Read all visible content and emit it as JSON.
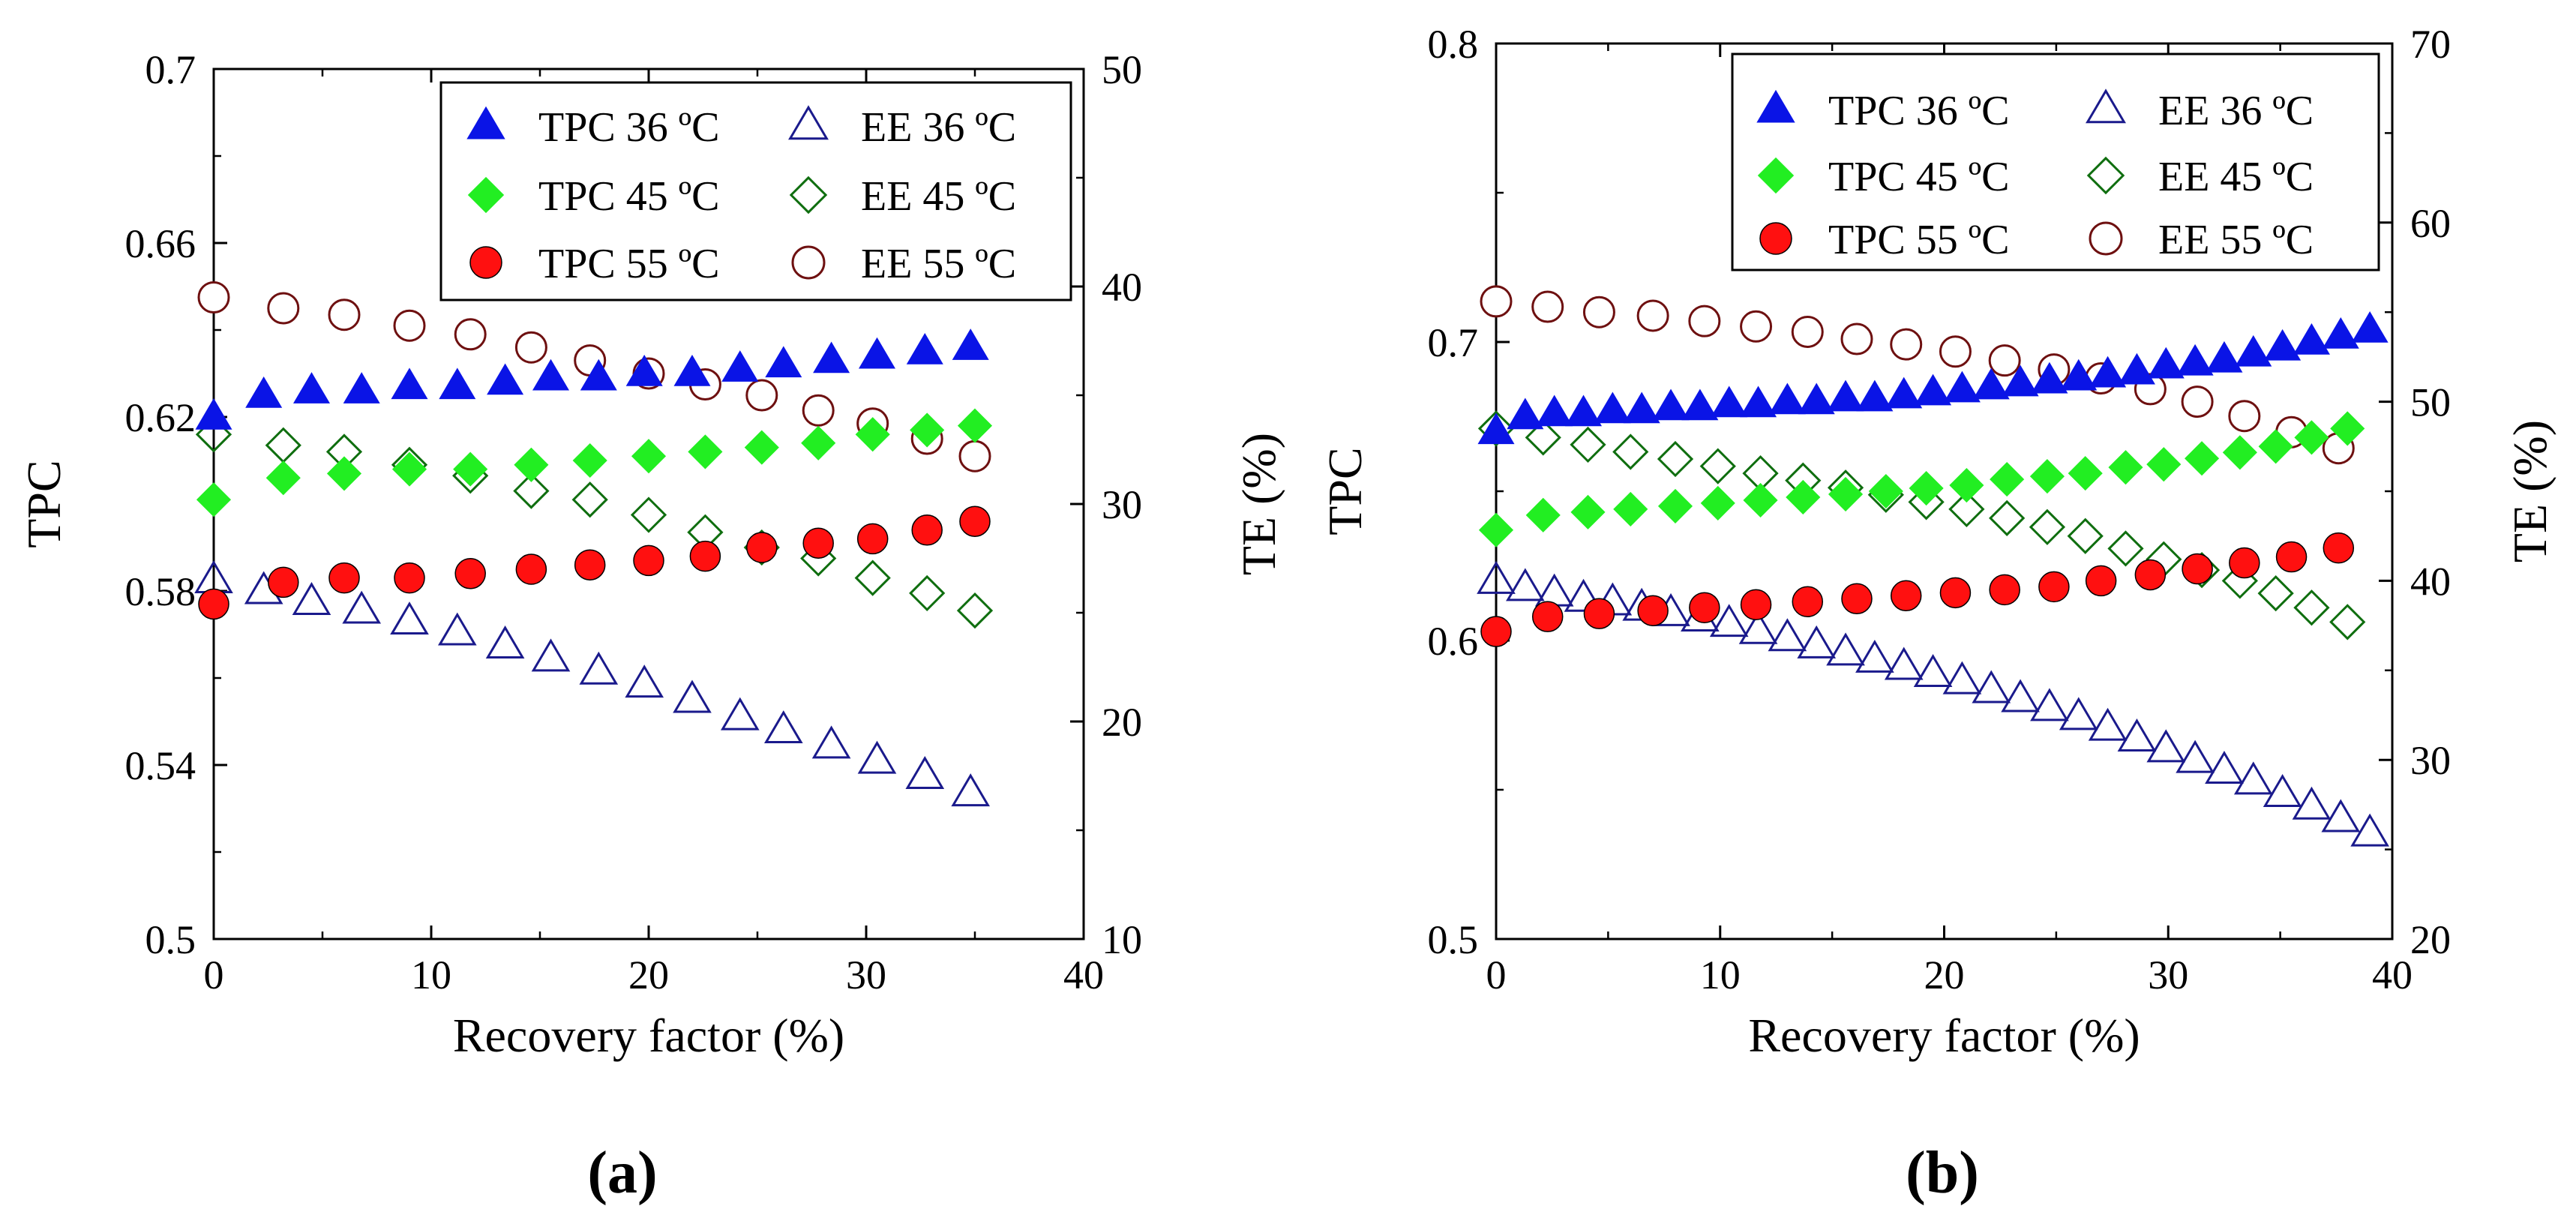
{
  "colors": {
    "tpc36": "#0a14e6",
    "tpc45": "#22ee22",
    "tpc55": "#ff1010",
    "ee36": "#1a1a8c",
    "ee45": "#0f6e0f",
    "ee55": "#6e1010",
    "axis": "#000000"
  },
  "chart_data": [
    {
      "type": "scatter",
      "panel_label": "(a)",
      "xlabel": "Recovery factor (%)",
      "ylabel": "TPC",
      "y2label": "TE (%)",
      "xlim": [
        0,
        40
      ],
      "ylim": [
        0.5,
        0.7
      ],
      "y2lim": [
        10,
        50
      ],
      "xticks": [
        "0",
        "10",
        "20",
        "30",
        "40"
      ],
      "yticks": [
        "0.5",
        "0.54",
        "0.58",
        "0.62",
        "0.66",
        "0.7"
      ],
      "y2ticks": [
        "10",
        "20",
        "30",
        "40",
        "50"
      ],
      "legend_position": "top-right",
      "legend_labels": [
        "TPC 36 ºC",
        "EE 36 ºC",
        "TPC 45 ºC",
        "EE 45 ºC",
        "TPC 55 ºC",
        "EE 55 ºC"
      ],
      "series": [
        {
          "key": "tpc36",
          "name": "TPC 36 ºC",
          "axis": "left",
          "marker": "triangle",
          "filled": true,
          "x": [
            0,
            2.3,
            4.5,
            6.8,
            9,
            11.2,
            13.4,
            15.5,
            17.7,
            19.8,
            22,
            24.2,
            26.2,
            28.4,
            30.5,
            32.7,
            34.8
          ],
          "y": [
            0.62,
            0.625,
            0.626,
            0.626,
            0.627,
            0.627,
            0.628,
            0.629,
            0.629,
            0.63,
            0.63,
            0.631,
            0.632,
            0.633,
            0.634,
            0.635,
            0.636
          ]
        },
        {
          "key": "tpc45",
          "name": "TPC 45 ºC",
          "axis": "left",
          "marker": "diamond",
          "filled": true,
          "x": [
            0,
            3.2,
            6,
            9,
            11.8,
            14.6,
            17.3,
            20,
            22.6,
            25.2,
            27.8,
            30.3,
            32.8,
            35
          ],
          "y": [
            0.601,
            0.606,
            0.607,
            0.608,
            0.608,
            0.609,
            0.61,
            0.611,
            0.612,
            0.613,
            0.614,
            0.616,
            0.617,
            0.618
          ]
        },
        {
          "key": "tpc55",
          "name": "TPC 55 ºC",
          "axis": "left",
          "marker": "circle",
          "filled": true,
          "x": [
            0,
            3.2,
            6,
            9,
            11.8,
            14.6,
            17.3,
            20,
            22.6,
            25.2,
            27.8,
            30.3,
            32.8,
            35
          ],
          "y": [
            0.577,
            0.582,
            0.583,
            0.583,
            0.584,
            0.585,
            0.586,
            0.587,
            0.588,
            0.59,
            0.591,
            0.592,
            0.594,
            0.596
          ]
        },
        {
          "key": "ee36",
          "name": "EE 36 ºC",
          "axis": "right",
          "marker": "triangle",
          "filled": false,
          "x": [
            0,
            2.3,
            4.5,
            6.8,
            9,
            11.2,
            13.4,
            15.5,
            17.7,
            19.8,
            22,
            24.2,
            26.2,
            28.4,
            30.5,
            32.7,
            34.8
          ],
          "y": [
            26.5,
            26.0,
            25.5,
            25.1,
            24.6,
            24.1,
            23.5,
            22.9,
            22.3,
            21.7,
            21.0,
            20.2,
            19.6,
            18.9,
            18.2,
            17.5,
            16.7
          ]
        },
        {
          "key": "ee45",
          "name": "EE 45 ºC",
          "axis": "right",
          "marker": "diamond",
          "filled": false,
          "x": [
            0,
            3.2,
            6,
            9,
            11.8,
            14.6,
            17.3,
            20,
            22.6,
            25.2,
            27.8,
            30.3,
            32.8,
            35
          ],
          "y": [
            33.2,
            32.7,
            32.4,
            31.8,
            31.3,
            30.6,
            30.2,
            29.5,
            28.7,
            28.0,
            27.5,
            26.6,
            25.9,
            25.1
          ]
        },
        {
          "key": "ee55",
          "name": "EE 55 ºC",
          "axis": "right",
          "marker": "circle",
          "filled": false,
          "x": [
            0,
            3.2,
            6,
            9,
            11.8,
            14.6,
            17.3,
            20,
            22.6,
            25.2,
            27.8,
            30.3,
            32.8,
            35
          ],
          "y": [
            39.5,
            39.0,
            38.7,
            38.2,
            37.8,
            37.2,
            36.6,
            36.0,
            35.5,
            35.0,
            34.3,
            33.7,
            33.0,
            32.2
          ]
        }
      ]
    },
    {
      "type": "scatter",
      "panel_label": "(b)",
      "xlabel": "Recovery factor (%)",
      "ylabel": "TPC",
      "y2label": "TE (%)",
      "xlim": [
        0,
        40
      ],
      "ylim": [
        0.5,
        0.8
      ],
      "y2lim": [
        20,
        70
      ],
      "xticks": [
        "0",
        "10",
        "20",
        "30",
        "40"
      ],
      "yticks": [
        "0.5",
        "0.6",
        "0.7",
        "0.8"
      ],
      "y2ticks": [
        "20",
        "30",
        "40",
        "50",
        "60",
        "70"
      ],
      "legend_position": "top-right",
      "legend_labels": [
        "TPC 36 ºC",
        "EE 36 ºC",
        "TPC 45 ºC",
        "EE 45 ºC",
        "TPC 55 ºC",
        "EE 55 ºC"
      ],
      "series": [
        {
          "key": "tpc36",
          "name": "TPC 36 ºC",
          "axis": "left",
          "marker": "triangle",
          "filled": true,
          "x": [
            0,
            1.3,
            2.6,
            3.9,
            5.2,
            6.5,
            7.8,
            9.1,
            10.4,
            11.7,
            13,
            14.3,
            15.6,
            16.9,
            18.2,
            19.5,
            20.8,
            22.1,
            23.4,
            24.7,
            26,
            27.3,
            28.6,
            29.9,
            31.2,
            32.5,
            33.8,
            35.1,
            36.4,
            37.7,
            39
          ],
          "y": [
            0.67,
            0.675,
            0.676,
            0.676,
            0.677,
            0.677,
            0.678,
            0.678,
            0.679,
            0.679,
            0.68,
            0.68,
            0.681,
            0.681,
            0.682,
            0.683,
            0.684,
            0.685,
            0.686,
            0.687,
            0.688,
            0.689,
            0.69,
            0.692,
            0.693,
            0.694,
            0.696,
            0.698,
            0.7,
            0.702,
            0.704
          ]
        },
        {
          "key": "tpc45",
          "name": "TPC 45 ºC",
          "axis": "left",
          "marker": "diamond",
          "filled": true,
          "x": [
            0,
            2.1,
            4.1,
            6,
            8,
            9.9,
            11.8,
            13.7,
            15.6,
            17.4,
            19.2,
            21,
            22.8,
            24.6,
            26.3,
            28.1,
            29.8,
            31.5,
            33.2,
            34.8,
            36.4,
            38
          ],
          "y": [
            0.637,
            0.642,
            0.643,
            0.644,
            0.645,
            0.646,
            0.647,
            0.648,
            0.649,
            0.65,
            0.651,
            0.652,
            0.654,
            0.655,
            0.656,
            0.658,
            0.659,
            0.661,
            0.663,
            0.665,
            0.668,
            0.671
          ]
        },
        {
          "key": "tpc55",
          "name": "TPC 55 ºC",
          "axis": "left",
          "marker": "circle",
          "filled": true,
          "x": [
            0,
            2.3,
            4.6,
            7,
            9.3,
            11.6,
            13.9,
            16.1,
            18.3,
            20.5,
            22.7,
            24.9,
            27,
            29.2,
            31.3,
            33.4,
            35.5,
            37.6
          ],
          "y": [
            0.603,
            0.608,
            0.609,
            0.61,
            0.611,
            0.612,
            0.613,
            0.614,
            0.615,
            0.616,
            0.617,
            0.618,
            0.62,
            0.622,
            0.624,
            0.626,
            0.628,
            0.631
          ]
        },
        {
          "key": "ee36",
          "name": "EE 36 ºC",
          "axis": "right",
          "marker": "triangle",
          "filled": false,
          "x": [
            0,
            1.3,
            2.6,
            3.9,
            5.2,
            6.5,
            7.8,
            9.1,
            10.4,
            11.7,
            13,
            14.3,
            15.6,
            16.9,
            18.2,
            19.5,
            20.8,
            22.1,
            23.4,
            24.7,
            26,
            27.3,
            28.6,
            29.9,
            31.2,
            32.5,
            33.8,
            35.1,
            36.4,
            37.7,
            39
          ],
          "y": [
            40.0,
            39.6,
            39.3,
            39.0,
            38.8,
            38.5,
            38.2,
            37.9,
            37.6,
            37.2,
            36.8,
            36.4,
            36.0,
            35.6,
            35.2,
            34.8,
            34.4,
            33.9,
            33.4,
            32.9,
            32.4,
            31.8,
            31.2,
            30.6,
            30.0,
            29.4,
            28.8,
            28.1,
            27.4,
            26.7,
            25.9
          ]
        },
        {
          "key": "ee45",
          "name": "EE 45 ºC",
          "axis": "right",
          "marker": "diamond",
          "filled": false,
          "x": [
            0,
            2.1,
            4.1,
            6,
            8,
            9.9,
            11.8,
            13.7,
            15.6,
            17.4,
            19.2,
            21,
            22.8,
            24.6,
            26.3,
            28.1,
            29.8,
            31.5,
            33.2,
            34.8,
            36.4,
            38
          ],
          "y": [
            48.5,
            48.0,
            47.6,
            47.2,
            46.8,
            46.4,
            46.0,
            45.6,
            45.2,
            44.8,
            44.4,
            44.0,
            43.5,
            43.0,
            42.5,
            41.8,
            41.2,
            40.6,
            40.0,
            39.3,
            38.5,
            37.7
          ]
        },
        {
          "key": "ee55",
          "name": "EE 55 ºC",
          "axis": "right",
          "marker": "circle",
          "filled": false,
          "x": [
            0,
            2.3,
            4.6,
            7,
            9.3,
            11.6,
            13.9,
            16.1,
            18.3,
            20.5,
            22.7,
            24.9,
            27,
            29.2,
            31.3,
            33.4,
            35.5,
            37.6
          ],
          "y": [
            55.6,
            55.3,
            55.0,
            54.8,
            54.5,
            54.2,
            53.9,
            53.5,
            53.2,
            52.8,
            52.3,
            51.8,
            51.3,
            50.7,
            50.0,
            49.2,
            48.3,
            47.4
          ]
        }
      ]
    }
  ]
}
